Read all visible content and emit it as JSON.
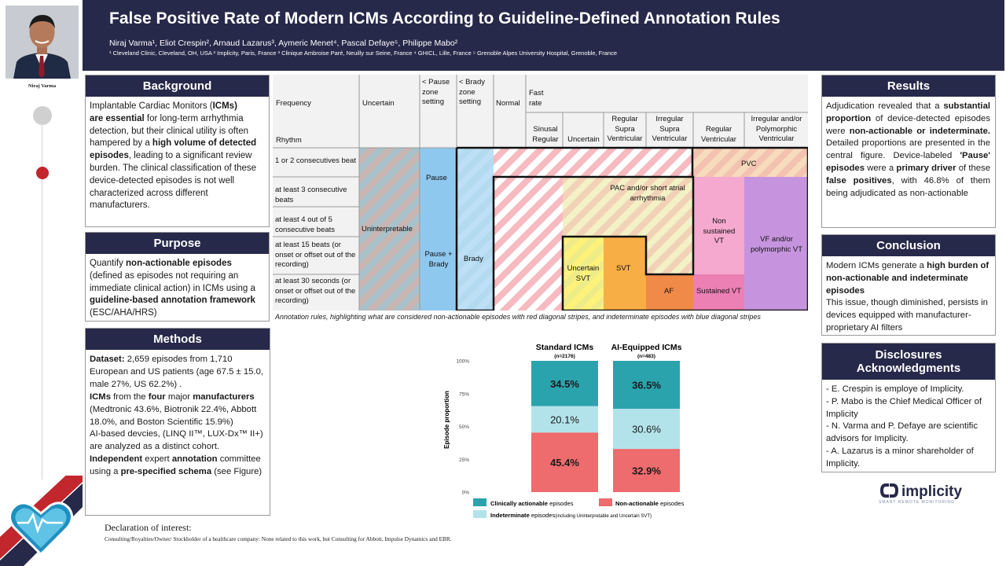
{
  "header": {
    "title": "False Positive Rate of Modern ICMs According to Guideline-Defined Annotation Rules",
    "authors": "Niraj Varma¹, Eliot Crespin², Arnaud Lazarus³, Aymeric Menet⁴, Pascal Defaye⁵, Philippe Mabo²",
    "affiliations": "¹ Cleveland Clinic, Cleveland, OH, USA ² Implicity, Paris, France ³ Clinique Ambroise Paré, Neuilly sur Seine, France ⁴ GHICL, Lille, France ⁵ Grenoble Alpes University Hospital, Grenoble, France"
  },
  "photo": {
    "name": "Niraj Varma"
  },
  "background": {
    "title": "Background",
    "p1": "Implantable Cardiac Monitors (",
    "p2": "ICMs)",
    "p3": "are essential",
    "p4": " for long-term arrhythmia detection, but their clinical utility is often hampered by a ",
    "p5": "high volume of detected episodes",
    "p6": ", leading to a significant review burden. The clinical classification of these device-detected episodes is not well characterized across different manufacturers."
  },
  "purpose": {
    "title": "Purpose",
    "p1": "Quantify ",
    "p2": "non-actionable episodes",
    "p3": " (defined as episodes not requiring an immediate clinical action) in ICMs using a ",
    "p4": "guideline-based annotation framework",
    "p5": " (ESC/AHA/HRS)"
  },
  "methods": {
    "title": "Methods",
    "dataset_label": "Dataset:",
    "dataset_text": " 2,659 episodes from 1,710 European and US patients (age 67.5 ± 15.0, male 27%, US 62.2%) .",
    "icms_label": "ICMs",
    "icms_text1": " from the ",
    "four": "four",
    "icms_text2": " major ",
    "manufacturers": "manufacturers",
    "manufacturers_text": " (Medtronic 43.6%, Biotronik 22.4%, Abbott 18.0%, and Boston Scientific 15.9%)",
    "ai_text": "AI-based devcies, (LINQ II™, LUX-Dx™ II+) are analyzed as a distinct cohort.",
    "independent": "Independent",
    "ind_text1": " expert ",
    "annotation": "annotation",
    "ind_text2": " committee using a ",
    "prespecified": "pre-specified schema",
    "ind_text3": " (see Figure)"
  },
  "results": {
    "title": "Results",
    "t1": "Adjudication revealed that a ",
    "t2": "substantial proportion",
    "t3": " of device-detected episodes were ",
    "t4": "non-actionable or indeterminate.",
    "t5": " Detailed proportions are presented in the central figure. Device-labeled ",
    "t6": "'Pause' episodes",
    "t7": " were a ",
    "t8": "primary driver",
    "t9": " of these ",
    "t10": "false positives",
    "t11": ", with 46.8% of them being adjudicated as non-actionable"
  },
  "conclusion": {
    "title": "Conclusion",
    "t1": "Modern ICMs generate a ",
    "t2": "high burden of non-actionable and indeterminate episodes",
    "t3": "This issue, though diminished, persists in devices equipped with manufacturer-proprietary AI filters"
  },
  "disclosures": {
    "title1": "Disclosures",
    "title2": "Acknowledgments",
    "items": [
      "- E. Crespin is  employe of Implicity.",
      "- P. Mabo is the Chief Medical Officer of Implicity",
      "- N. Varma and P. Defaye are scientific advisors for Implicity.",
      "- A. Lazarus is a minor shareholder of Implicity."
    ]
  },
  "declaration": {
    "title": "Declaration of interest:",
    "text": "Consulting/Royalties/Owner/ Stockholder of a healthcare company: None related to this work, but Consulting for Abbott, Impulse Dynamics and EBR."
  },
  "annotation_table": {
    "frequency": "Frequency",
    "rhythm": "Rhythm",
    "col_uncertain": "Uncertain",
    "col_pause": "< Pause zone setting",
    "col_brady": "< Brady zone setting",
    "col_normal": "Normal",
    "col_fast": "Fast rate",
    "sub_sinusal": "Sinusal Regular",
    "sub_uncertain": "Uncertain",
    "sub_rsv": "Regular Supra Ventricular",
    "sub_isv": "Irregular Supra Ventricular",
    "sub_rv": "Regular Ventricular",
    "sub_ipv": "Irregular and/or Polymorphic Ventricular",
    "row1": "1 or 2 consecutives beat",
    "row2": "at least 3 consecutive beats",
    "row3": "at least 4 out of 5 consecutive beats",
    "row4": "at least 15 beats (or onset or offset out of the recording)",
    "row5": "at least 30 seconds (or onset or offset out of the recording)",
    "lbl_uninterpretable": "Uninterpretable",
    "lbl_pause": "Pause",
    "lbl_pause_brady": "Pause + Brady",
    "lbl_brady": "Brady",
    "lbl_pvc": "PVC",
    "lbl_pac": "PAC and/or short atrial arrhythmia",
    "lbl_nsvt": "Non sustained VT",
    "lbl_vf": "VF and/or polymorphic VT",
    "lbl_usvt": "Uncertain SVT",
    "lbl_svt": "SVT",
    "lbl_af": "AF",
    "lbl_svt2": "Sustained VT",
    "caption": "Annotation rules, highlighting what are considered non-actionable episodes with red diagonal stripes, and indeterminate episodes with blue diagonal stripes"
  },
  "chart_data": {
    "type": "bar",
    "stacked": true,
    "categories": [
      "Standard ICMs",
      "AI-Equipped ICMs"
    ],
    "category_n": [
      "(n=2176)",
      "(n=483)"
    ],
    "ylabel": "Episode proportion",
    "ylim": [
      0,
      100
    ],
    "yticks": [
      "0%",
      "25%",
      "50%",
      "75%",
      "100%"
    ],
    "series": [
      {
        "name": "Non-actionable episodes",
        "values": [
          45.4,
          32.9
        ],
        "labels": [
          "45.4%",
          "32.9%"
        ],
        "color": "#ee6b6e"
      },
      {
        "name": "Indeterminate episodes",
        "values": [
          20.1,
          30.6
        ],
        "labels": [
          "20.1%",
          "30.6%"
        ],
        "color": "#b3e3ea"
      },
      {
        "name": "Clinically actionable episodes",
        "values": [
          34.5,
          36.5
        ],
        "labels": [
          "34.5%",
          "36.5%"
        ],
        "color": "#2ba3ad"
      }
    ],
    "legend": {
      "clinically_bold": "Clinically actionable",
      "clinically_rest": " episodes",
      "non_bold": "Non-actionable",
      "non_rest": " episodes",
      "ind_bold": "Indeterminate",
      "ind_rest": " episodes",
      "ind_note": "(including Uninterpretable and Uncertain SVT)"
    },
    "legend_position": "bottom"
  },
  "implicity": {
    "name": "implicity",
    "tagline": "SMART REMOTE MONITORING"
  },
  "colors": {
    "navy": "#27294a",
    "red": "#c1272d"
  }
}
